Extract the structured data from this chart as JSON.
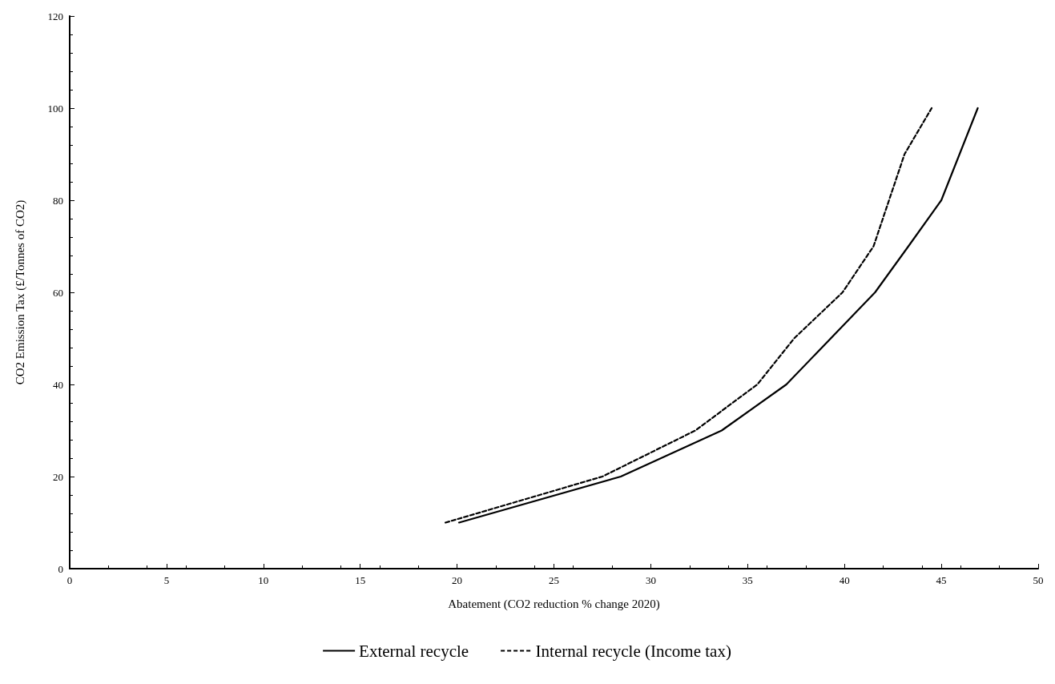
{
  "chart_data": {
    "type": "line",
    "xlabel": "Abatement (CO2 reduction % change 2020)",
    "ylabel": "CO2 Emission Tax (£/Tonnes of CO2)",
    "xlim": [
      0,
      50
    ],
    "xticks": [
      0,
      5,
      10,
      15,
      20,
      25,
      30,
      35,
      40,
      45,
      50
    ],
    "ylim": [
      0,
      120
    ],
    "yticks": [
      0,
      20,
      40,
      60,
      80,
      100,
      120
    ],
    "grid": false,
    "legend": "bottom",
    "marker": "none",
    "series": [
      {
        "name": "External recycle",
        "color": "#000000",
        "line_style": "solid",
        "x": [
          20.1,
          28.45,
          33.66,
          37.0,
          41.58,
          43.3,
          45.0,
          46.88
        ],
        "values": [
          10,
          20,
          30,
          40,
          60,
          70,
          80,
          100
        ]
      },
      {
        "name": "Internal recycle (Income tax)",
        "color": "#000000",
        "line_style": "dashed",
        "x": [
          19.4,
          27.5,
          32.3,
          35.5,
          37.4,
          39.9,
          41.5,
          43.1,
          44.5
        ],
        "values": [
          10,
          20,
          30,
          40,
          50,
          60,
          70,
          90,
          100
        ]
      }
    ]
  }
}
